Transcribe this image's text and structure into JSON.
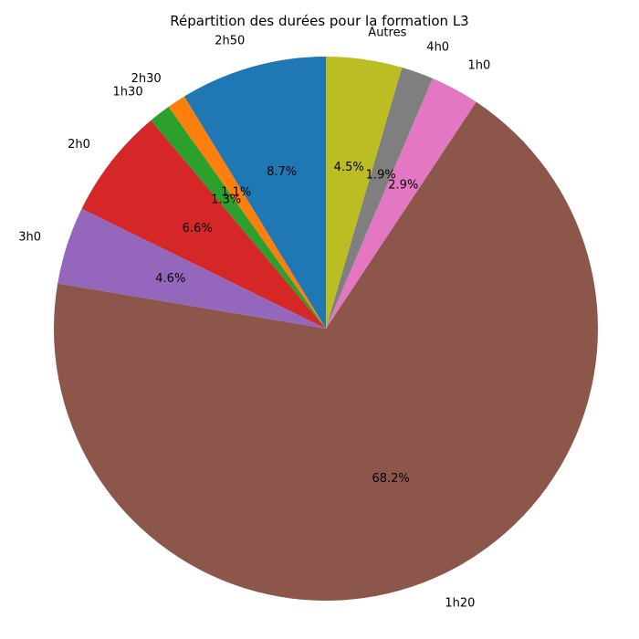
{
  "chart_data": {
    "type": "pie",
    "title": "Répartition des durées pour la formation L3",
    "start": "top, counter-clockwise",
    "slices": [
      {
        "label": "2h50",
        "value": 8.7,
        "pct_label": "8.7%",
        "color": "#1f77b4"
      },
      {
        "label": "2h30",
        "value": 1.1,
        "pct_label": "1.1%",
        "color": "#ff7f0e"
      },
      {
        "label": "1h30",
        "value": 1.3,
        "pct_label": "1.3%",
        "color": "#2ca02c"
      },
      {
        "label": "2h0",
        "value": 6.6,
        "pct_label": "6.6%",
        "color": "#d62728"
      },
      {
        "label": "3h0",
        "value": 4.6,
        "pct_label": "4.6%",
        "color": "#9467bd"
      },
      {
        "label": "1h20",
        "value": 68.2,
        "pct_label": "68.2%",
        "color": "#8c564b"
      },
      {
        "label": "1h0",
        "value": 2.9,
        "pct_label": "2.9%",
        "color": "#e377c2"
      },
      {
        "label": "4h0",
        "value": 1.9,
        "pct_label": "1.9%",
        "color": "#7f7f7f"
      },
      {
        "label": "Autres",
        "value": 4.5,
        "pct_label": "4.5%",
        "color": "#bcbd22"
      }
    ]
  }
}
